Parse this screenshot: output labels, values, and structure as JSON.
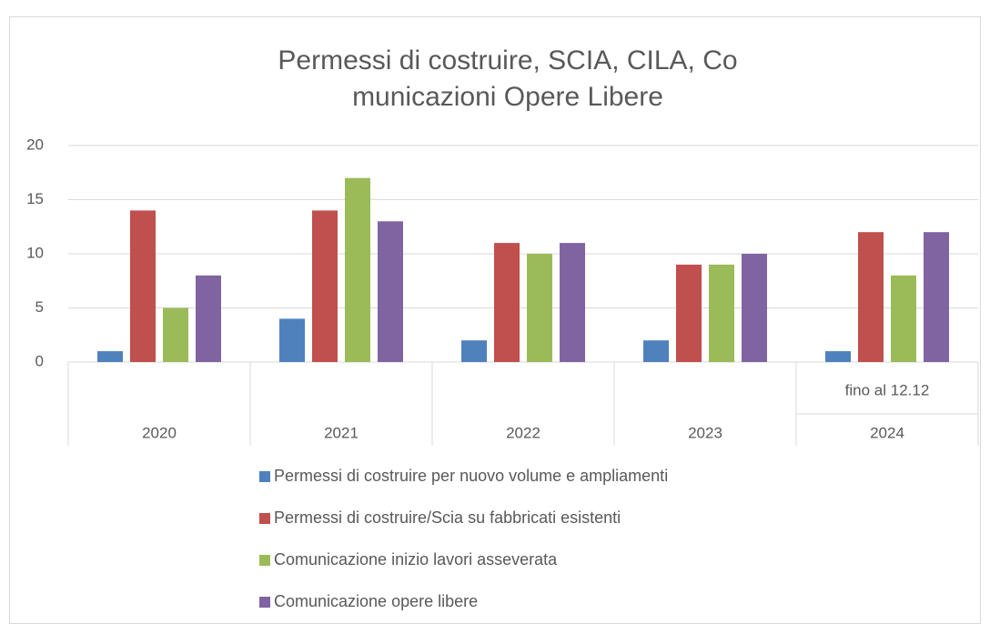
{
  "chart_data": {
    "type": "bar",
    "title": [
      "Permessi di costruire, SCIA, CILA, Co",
      "municazioni Opere Libere"
    ],
    "categories": [
      "2020",
      "2021",
      "2022",
      "2023",
      "2024"
    ],
    "subcategories": [
      null,
      null,
      null,
      null,
      "fino al 12.12"
    ],
    "series": [
      {
        "name": "Permessi di costruire per nuovo volume e ampliamenti",
        "color": "#4f81bd",
        "values": [
          1,
          4,
          2,
          2,
          1
        ]
      },
      {
        "name": "Permessi di costruire/Scia su fabbricati esistenti",
        "color": "#c0504d",
        "values": [
          14,
          14,
          11,
          9,
          12
        ]
      },
      {
        "name": "Comunicazione inizio lavori asseverata",
        "color": "#9bbb59",
        "values": [
          5,
          17,
          10,
          9,
          8
        ]
      },
      {
        "name": "Comunicazione opere libere",
        "color": "#8064a2",
        "values": [
          8,
          13,
          11,
          10,
          12
        ]
      }
    ],
    "ylim": [
      0,
      20
    ],
    "yticks": [
      0,
      5,
      10,
      15,
      20
    ],
    "grid": true,
    "legend": "bottom"
  }
}
